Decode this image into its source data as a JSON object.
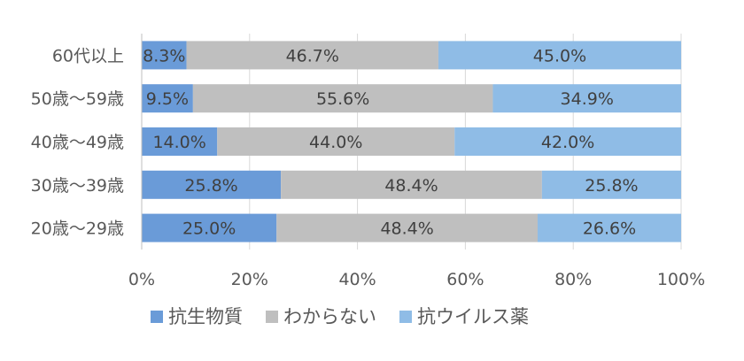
{
  "chart_data": {
    "type": "bar",
    "orientation": "horizontal",
    "stacked": "percent",
    "categories": [
      "60代以上",
      "50歳〜59歳",
      "40歳〜49歳",
      "30歳〜39歳",
      "20歳〜29歳"
    ],
    "series": [
      {
        "name": "抗生物質",
        "color": "#6a9bd8",
        "values": [
          8.3,
          9.5,
          14.0,
          25.8,
          25.0
        ],
        "labels": [
          "8.3%",
          "9.5%",
          "14.0%",
          "25.8%",
          "25.0%"
        ]
      },
      {
        "name": "わからない",
        "color": "#bfbfbf",
        "values": [
          46.7,
          55.6,
          44.0,
          48.4,
          48.4
        ],
        "labels": [
          "46.7%",
          "55.6%",
          "44.0%",
          "48.4%",
          "48.4%"
        ]
      },
      {
        "name": "抗ウイルス薬",
        "color": "#8fbce6",
        "values": [
          45.0,
          34.9,
          42.0,
          25.8,
          26.6
        ],
        "labels": [
          "45.0%",
          "34.9%",
          "42.0%",
          "25.8%",
          "26.6%"
        ]
      }
    ],
    "x_ticks": [
      "0%",
      "20%",
      "40%",
      "60%",
      "80%",
      "100%"
    ],
    "xlim": [
      0,
      100
    ],
    "grid": true,
    "legend_position": "bottom",
    "title": "",
    "xlabel": "",
    "ylabel": ""
  }
}
